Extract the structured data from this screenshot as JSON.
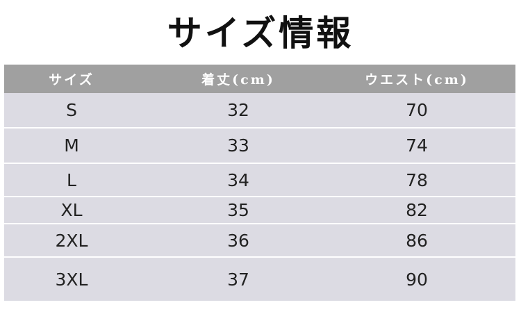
{
  "title": "サイズ情報",
  "headers": [
    "サイズ",
    "着丈(cm)",
    "ウエスト(cm)"
  ],
  "rows": [
    [
      "S",
      "32",
      "70"
    ],
    [
      "M",
      "33",
      "74"
    ],
    [
      "L",
      "34",
      "78"
    ],
    [
      "XL",
      "35",
      "82"
    ],
    [
      "2XL",
      "36",
      "86"
    ],
    [
      "3XL",
      "37",
      "90"
    ]
  ],
  "colors": {
    "header_bg": "#a0a0a0",
    "body_bg": "#dcdbe3"
  }
}
